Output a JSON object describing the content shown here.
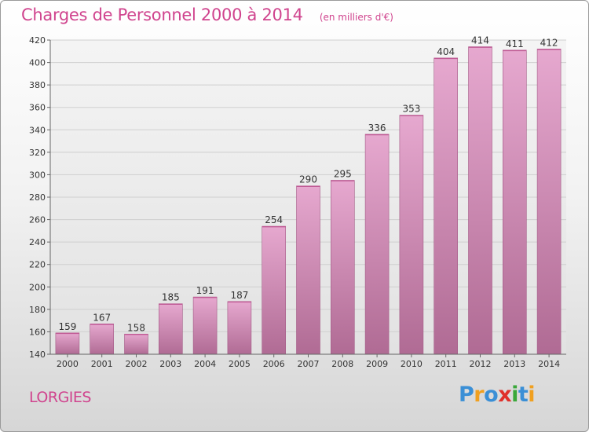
{
  "chart_data": {
    "type": "bar",
    "title": "Charges de Personnel 2000 à 2014",
    "subtitle": "(en milliers d'€)",
    "categories": [
      "2000",
      "2001",
      "2002",
      "2003",
      "2004",
      "2005",
      "2006",
      "2007",
      "2008",
      "2009",
      "2010",
      "2011",
      "2012",
      "2013",
      "2014"
    ],
    "values": [
      159,
      167,
      158,
      185,
      191,
      187,
      254,
      290,
      295,
      336,
      353,
      404,
      414,
      411,
      412
    ],
    "ylim": [
      140,
      420
    ],
    "yticks": [
      140,
      160,
      180,
      200,
      220,
      240,
      260,
      280,
      300,
      320,
      340,
      360,
      380,
      400,
      420
    ],
    "grid": true,
    "xlabel": "",
    "ylabel": ""
  },
  "colors": {
    "accent": "#d0448e",
    "bar_top": "#e6a8cf",
    "bar_bottom": "#b06b94",
    "grid": "#cfcfcf"
  },
  "location": "LORGIES",
  "logo": {
    "letters": [
      "P",
      "r",
      "o",
      "x",
      "i",
      "t",
      "i"
    ],
    "colors": [
      "#3a8fd6",
      "#f0a020",
      "#3a8fd6",
      "#e0302a",
      "#3aa83a",
      "#3a8fd6",
      "#f0a020"
    ]
  }
}
